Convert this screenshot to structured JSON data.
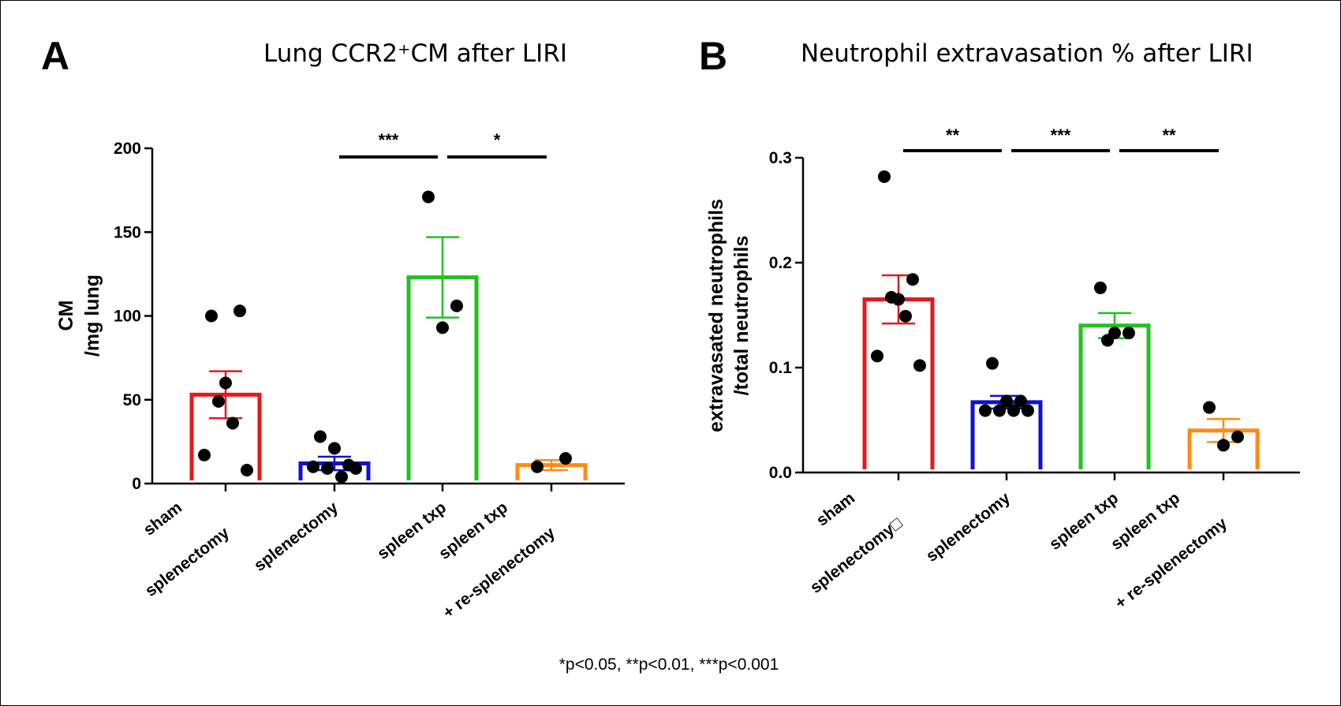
{
  "footnote": "*p<0.05, **p<0.01, ***p<0.001",
  "colors": {
    "red": "#e31a1c",
    "blue": "#1010d8",
    "green": "#22c122",
    "orange": "#ff8c10",
    "black": "#000000"
  },
  "chart_data": [
    {
      "type": "bar",
      "panel": "A",
      "title": "Lung CCR2⁺CM after LIRI",
      "ylabel": [
        "CM",
        "/mg lung"
      ],
      "ylim": [
        0,
        200
      ],
      "yticks": [
        0,
        50,
        100,
        150,
        200
      ],
      "categories": [
        [
          "sham",
          "splenectomy"
        ],
        [
          "splenectomy"
        ],
        [
          "spleen txp"
        ],
        [
          "spleen txp",
          "+ re-splenectomy"
        ]
      ],
      "bar_colors": [
        "#e31a1c",
        "#1010d8",
        "#22c122",
        "#ff8c10"
      ],
      "means": [
        53,
        12,
        123,
        11
      ],
      "sem": [
        14,
        4,
        24,
        3
      ],
      "points": [
        [
          100,
          103,
          60,
          49,
          36,
          17,
          8
        ],
        [
          28,
          11,
          21,
          9,
          4,
          10,
          9
        ],
        [
          171,
          106,
          93
        ],
        [
          10,
          15
        ]
      ],
      "significance": [
        {
          "from": 1,
          "to": 2,
          "label": "***"
        },
        {
          "from": 2,
          "to": 3,
          "label": "*"
        }
      ]
    },
    {
      "type": "bar",
      "panel": "B",
      "title": "Neutrophil extravasation % after LIRI",
      "ylabel": [
        "extravasated neutrophils",
        "/total neutrophils"
      ],
      "ylim": [
        0,
        0.3
      ],
      "yticks": [
        "0.0",
        "0.1",
        "0.2",
        "0.3"
      ],
      "categories": [
        [
          "sham",
          "splenectomy□"
        ],
        [
          "splenectomy"
        ],
        [
          "spleen txp"
        ],
        [
          "spleen txp",
          "+ re-splenectomy"
        ]
      ],
      "bar_colors": [
        "#e31a1c",
        "#1010d8",
        "#22c122",
        "#ff8c10"
      ],
      "means": [
        0.165,
        0.067,
        0.14,
        0.04
      ],
      "sem": [
        0.023,
        0.006,
        0.012,
        0.011
      ],
      "points": [
        [
          0.282,
          0.184,
          0.165,
          0.167,
          0.149,
          0.111,
          0.102
        ],
        [
          0.104,
          0.068,
          0.068,
          0.059,
          0.059,
          0.059,
          0.059
        ],
        [
          0.176,
          0.133,
          0.133,
          0.126
        ],
        [
          0.062,
          0.034,
          0.026
        ]
      ],
      "significance": [
        {
          "from": 0,
          "to": 1,
          "label": "**"
        },
        {
          "from": 1,
          "to": 2,
          "label": "***"
        },
        {
          "from": 2,
          "to": 3,
          "label": "**"
        }
      ]
    }
  ]
}
